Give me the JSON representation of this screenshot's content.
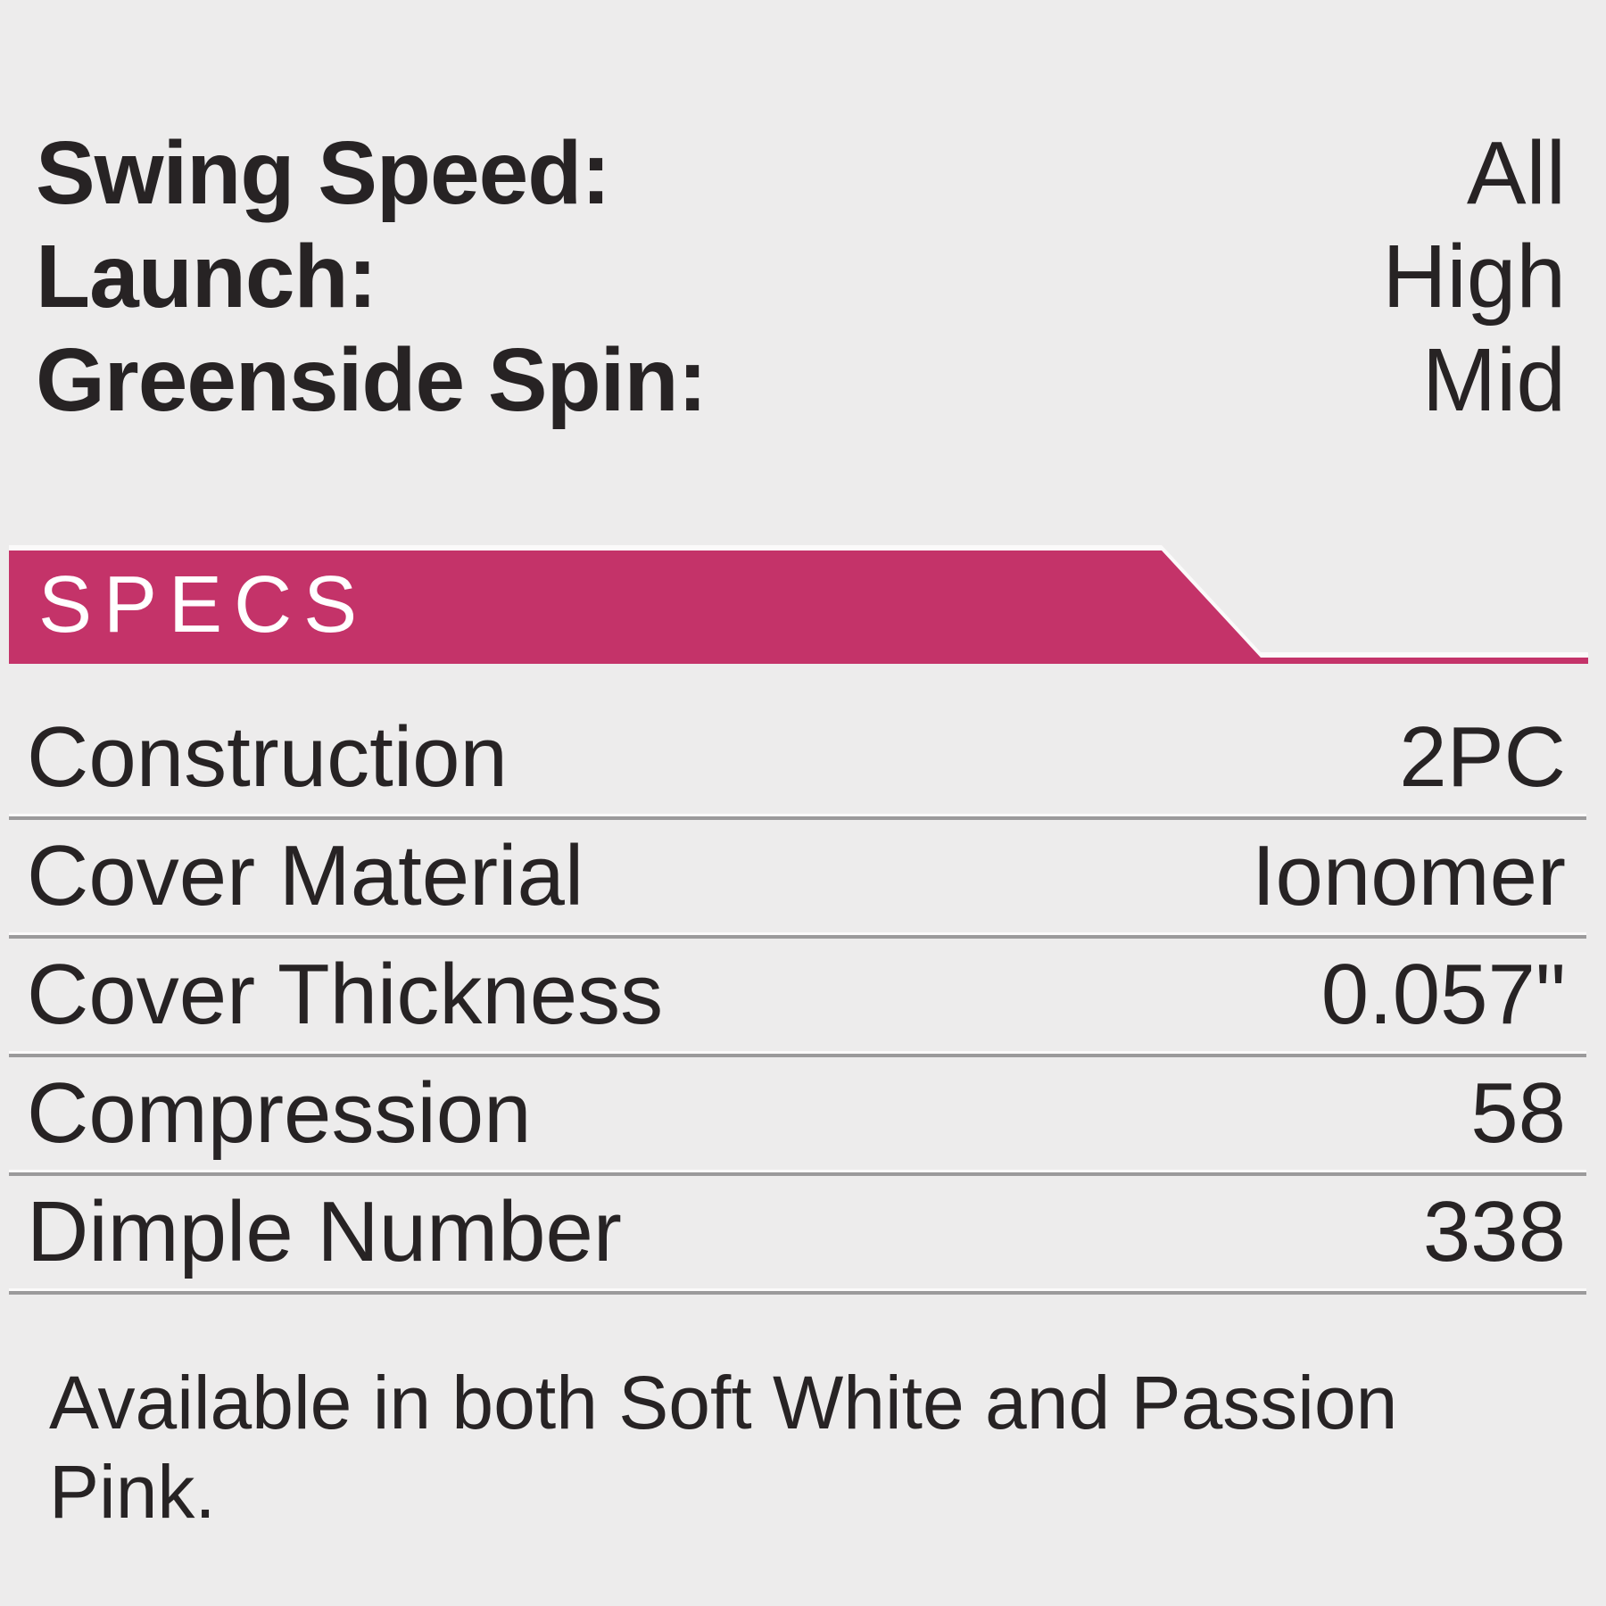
{
  "page": {
    "background_color": "#edecec",
    "text_color": "#272324",
    "accent_pink": "#c43369",
    "divider_gray": "#9b9a9b"
  },
  "performance": {
    "rows": [
      {
        "label": "Swing Speed:",
        "value": "All"
      },
      {
        "label": "Launch:",
        "value": "High"
      },
      {
        "label": "Greenside Spin:",
        "value": "Mid"
      }
    ]
  },
  "specs_header": {
    "title": "SPECS"
  },
  "specs_table": {
    "rows": [
      {
        "label": "Construction",
        "value": "2PC"
      },
      {
        "label": "Cover Material",
        "value": "Ionomer"
      },
      {
        "label": "Cover Thickness",
        "value": "0.057\""
      },
      {
        "label": "Compression",
        "value": "58"
      },
      {
        "label": "Dimple Number",
        "value": "338"
      }
    ]
  },
  "footer": {
    "note": "Available in both Soft White and Passion Pink."
  }
}
